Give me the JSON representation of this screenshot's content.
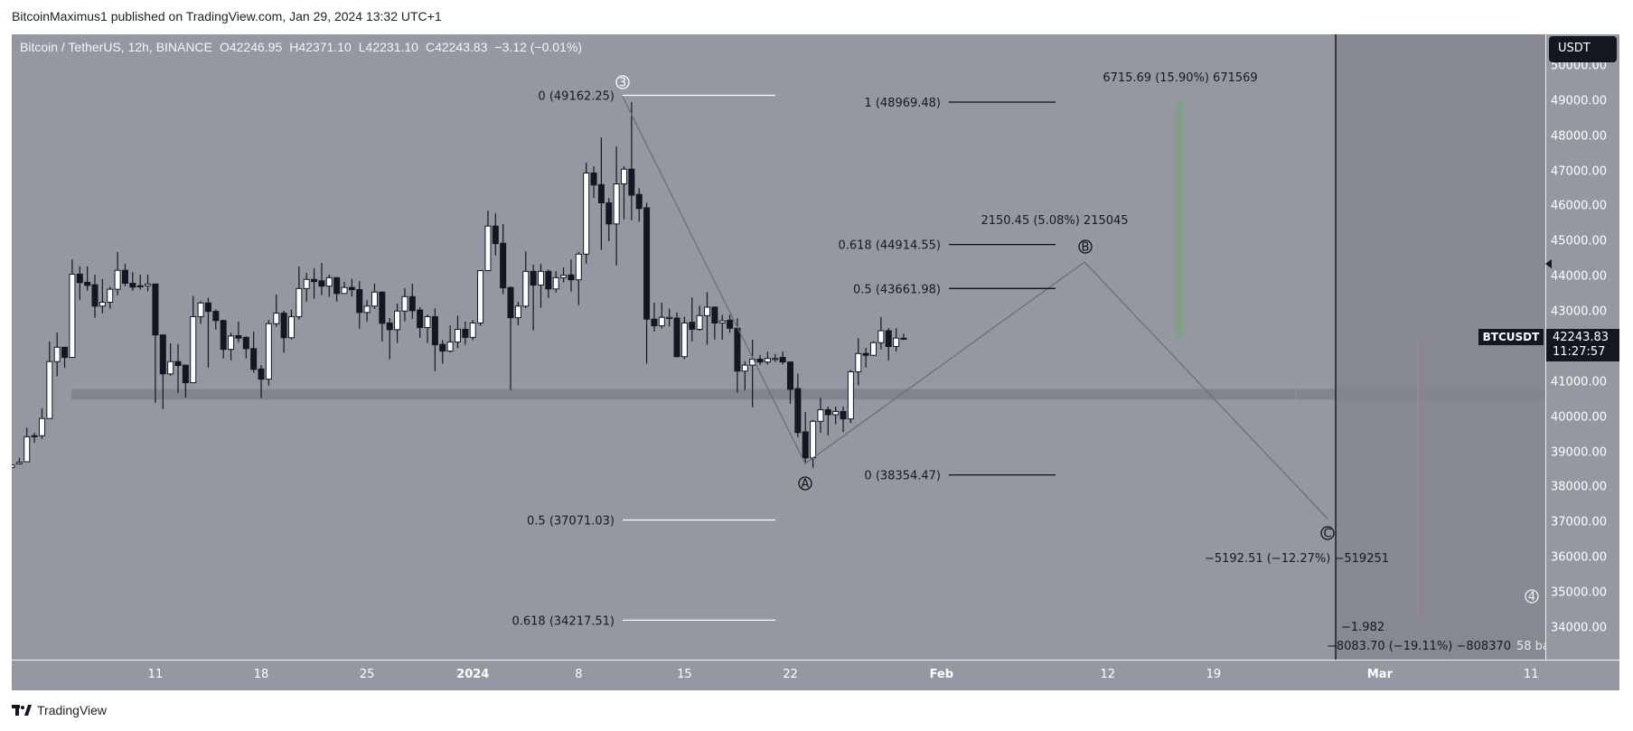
{
  "header": {
    "published": "BitcoinMaximus1 published on TradingView.com, Jan 29, 2024 13:32 UTC+1"
  },
  "legend": {
    "symbol": "Bitcoin / TetherUS, 12h, BINANCE",
    "open": "O42246.95",
    "high": "H42371.10",
    "low": "L42231.10",
    "close": "C42243.83",
    "change": "−3.12 (−0.01%)"
  },
  "price_axis": {
    "currency_button": "USDT",
    "labels": [
      "50000.00",
      "49000.00",
      "48000.00",
      "47000.00",
      "46000.00",
      "45000.00",
      "44000.00",
      "43000.00",
      "41000.00",
      "40000.00",
      "39000.00",
      "38000.00",
      "37000.00",
      "36000.00",
      "35000.00",
      "34000.00"
    ],
    "symbol_tag": "BTCUSDT",
    "last_price": "42243.83",
    "countdown": "11:27:57"
  },
  "time_axis": {
    "labels": [
      {
        "t": "11",
        "d": -21,
        "b": false
      },
      {
        "t": "18",
        "d": -14,
        "b": false
      },
      {
        "t": "25",
        "d": -7,
        "b": false
      },
      {
        "t": "2024",
        "d": 0,
        "b": true
      },
      {
        "t": "8",
        "d": 7,
        "b": false
      },
      {
        "t": "15",
        "d": 14,
        "b": false
      },
      {
        "t": "22",
        "d": 21,
        "b": false
      },
      {
        "t": "Feb",
        "d": 31,
        "b": true
      },
      {
        "t": "12",
        "d": 42,
        "b": false
      },
      {
        "t": "19",
        "d": 49,
        "b": false
      },
      {
        "t": "Mar",
        "d": 60,
        "b": true
      },
      {
        "t": "11",
        "d": 70,
        "b": false
      }
    ]
  },
  "fib_left": [
    {
      "label": "0 (49162.25)",
      "price": 49162.25
    },
    {
      "label": "0.5 (37071.03)",
      "price": 37071.03
    },
    {
      "label": "0.618 (34217.51)",
      "price": 34217.51
    }
  ],
  "fib_right": [
    {
      "label": "1 (48969.48)",
      "price": 48969.48
    },
    {
      "label": "0.618 (44914.55)",
      "price": 44914.55
    },
    {
      "label": "0.5 (43661.98)",
      "price": 43661.98
    },
    {
      "label": "0 (38354.47)",
      "price": 38354.47
    }
  ],
  "waves": {
    "w3": "3",
    "a": "A",
    "b": "B",
    "c": "C",
    "w4": "4"
  },
  "measures": {
    "up_big": "6715.69 (15.90%) 671569",
    "up_small": "2150.45 (5.08%) 215045",
    "down_c": "−5192.51 (−12.27%) −519251",
    "down_big": "−8083.70 (−19.11%) −808370",
    "bars": "58 ba",
    "ratio": "−1.982"
  },
  "support_zone": {
    "low": 40500,
    "high": 40800
  },
  "colors": {
    "pane": "#9598a1",
    "bull": "#ffffff",
    "bear": "#131722",
    "green": "#7fa287",
    "projection": "#868892"
  },
  "footer": {
    "brand": "TradingView"
  },
  "chart_data": {
    "type": "candlestick",
    "interval": "12h",
    "first_candle": "2023-12-01 00:00",
    "ohlc": [
      [
        38570,
        38650,
        38540,
        38640
      ],
      [
        38670,
        38840,
        38660,
        38710
      ],
      [
        38730,
        39700,
        38720,
        39440
      ],
      [
        39470,
        39550,
        39270,
        39440
      ],
      [
        39470,
        40250,
        39380,
        39960
      ],
      [
        39960,
        42150,
        39960,
        41580
      ],
      [
        41580,
        42410,
        41160,
        41990
      ],
      [
        41990,
        41990,
        41410,
        41700
      ],
      [
        41700,
        44490,
        41700,
        44070
      ],
      [
        44070,
        44290,
        43340,
        43830
      ],
      [
        43840,
        44290,
        43600,
        43750
      ],
      [
        43770,
        44060,
        42830,
        43160
      ],
      [
        43160,
        43930,
        42960,
        43270
      ],
      [
        43270,
        43710,
        43090,
        43640
      ],
      [
        43640,
        44700,
        43470,
        44180
      ],
      [
        44180,
        44360,
        43730,
        43810
      ],
      [
        43810,
        44130,
        43600,
        43700
      ],
      [
        43740,
        44060,
        43630,
        43730
      ],
      [
        43740,
        44060,
        43580,
        43790
      ],
      [
        43790,
        43790,
        40410,
        42340
      ],
      [
        42340,
        42340,
        40230,
        41230
      ],
      [
        41230,
        42100,
        41180,
        41580
      ],
      [
        41580,
        42080,
        40690,
        41470
      ],
      [
        41480,
        41480,
        40560,
        40980
      ],
      [
        40980,
        43450,
        40980,
        42860
      ],
      [
        42860,
        43300,
        42650,
        43250
      ],
      [
        43250,
        43400,
        41410,
        43010
      ],
      [
        43010,
        43070,
        42490,
        42750
      ],
      [
        42750,
        42770,
        41670,
        41930
      ],
      [
        41930,
        42400,
        41620,
        42310
      ],
      [
        42320,
        42720,
        42130,
        42250
      ],
      [
        42270,
        42300,
        41670,
        41950
      ],
      [
        41950,
        42430,
        41260,
        41360
      ],
      [
        41370,
        41480,
        40540,
        41080
      ],
      [
        41080,
        42760,
        40900,
        42660
      ],
      [
        42660,
        43490,
        42570,
        42960
      ],
      [
        42960,
        43030,
        41830,
        42260
      ],
      [
        42260,
        43060,
        42210,
        42860
      ],
      [
        42860,
        44290,
        42780,
        43660
      ],
      [
        43660,
        44110,
        43290,
        43920
      ],
      [
        43920,
        44240,
        43370,
        43860
      ],
      [
        43880,
        44390,
        43470,
        43730
      ],
      [
        43730,
        44060,
        43420,
        43970
      ],
      [
        43970,
        43970,
        43290,
        43520
      ],
      [
        43520,
        43850,
        43520,
        43690
      ],
      [
        43690,
        43940,
        43430,
        43630
      ],
      [
        43630,
        43870,
        42520,
        42980
      ],
      [
        42980,
        43330,
        42720,
        43160
      ],
      [
        43160,
        43800,
        43080,
        43560
      ],
      [
        43560,
        43580,
        42150,
        42670
      ],
      [
        42680,
        42820,
        41650,
        42490
      ],
      [
        42490,
        43230,
        42110,
        43020
      ],
      [
        43020,
        43670,
        42730,
        43430
      ],
      [
        43430,
        43800,
        42800,
        43030
      ],
      [
        43050,
        43130,
        42260,
        42550
      ],
      [
        42550,
        42920,
        42110,
        42860
      ],
      [
        42860,
        43100,
        41310,
        42060
      ],
      [
        42070,
        42190,
        41520,
        41880
      ],
      [
        41880,
        42610,
        41840,
        42140
      ],
      [
        42140,
        42890,
        41970,
        42500
      ],
      [
        42500,
        42720,
        42060,
        42270
      ],
      [
        42270,
        42760,
        42190,
        42680
      ],
      [
        42680,
        44170,
        42600,
        44170
      ],
      [
        44170,
        45880,
        44170,
        45440
      ],
      [
        45440,
        45800,
        44600,
        44940
      ],
      [
        44950,
        45500,
        43500,
        43680
      ],
      [
        43690,
        43720,
        40770,
        42830
      ],
      [
        42830,
        43280,
        42620,
        43160
      ],
      [
        43160,
        44720,
        43100,
        44150
      ],
      [
        44150,
        44340,
        42470,
        43760
      ],
      [
        43760,
        44360,
        43110,
        44150
      ],
      [
        44150,
        44200,
        43390,
        43650
      ],
      [
        43650,
        44160,
        43550,
        43970
      ],
      [
        43970,
        44260,
        43840,
        44040
      ],
      [
        44050,
        44490,
        43570,
        43910
      ],
      [
        43910,
        44700,
        43190,
        44640
      ],
      [
        44640,
        47240,
        44370,
        46950
      ],
      [
        46950,
        47140,
        46240,
        46610
      ],
      [
        46620,
        47960,
        44760,
        46100
      ],
      [
        46100,
        46240,
        45010,
        45500
      ],
      [
        45500,
        47710,
        44320,
        46640
      ],
      [
        46640,
        47140,
        45630,
        47060
      ],
      [
        47060,
        48970,
        45610,
        46320
      ],
      [
        46340,
        46520,
        45560,
        45940
      ],
      [
        45960,
        46100,
        41520,
        42790
      ],
      [
        42790,
        43260,
        42440,
        42600
      ],
      [
        42600,
        43260,
        42520,
        42840
      ],
      [
        42840,
        43090,
        42580,
        42840
      ],
      [
        42820,
        42980,
        41720,
        41720
      ],
      [
        41720,
        42860,
        41650,
        42680
      ],
      [
        42700,
        43410,
        42160,
        42500
      ],
      [
        42500,
        43170,
        42460,
        42890
      ],
      [
        42890,
        43560,
        42060,
        43130
      ],
      [
        43130,
        43150,
        42210,
        42680
      ],
      [
        42680,
        42910,
        42200,
        42740
      ],
      [
        42760,
        42910,
        42400,
        42530
      ],
      [
        42530,
        42810,
        40700,
        41310
      ],
      [
        41310,
        41590,
        40770,
        41480
      ],
      [
        41480,
        42200,
        40280,
        41650
      ],
      [
        41650,
        41770,
        41480,
        41570
      ],
      [
        41570,
        41860,
        41500,
        41670
      ],
      [
        41670,
        41800,
        41570,
        41670
      ],
      [
        41700,
        41870,
        41500,
        41570
      ],
      [
        41570,
        41590,
        40380,
        40790
      ],
      [
        40810,
        41240,
        39420,
        39560
      ],
      [
        39580,
        40140,
        38670,
        38840
      ],
      [
        38840,
        39920,
        38560,
        39880
      ],
      [
        39880,
        40550,
        39550,
        40210
      ],
      [
        40210,
        40300,
        39480,
        40070
      ],
      [
        40070,
        40300,
        39800,
        40160
      ],
      [
        40160,
        40300,
        39570,
        39950
      ],
      [
        39950,
        41340,
        39830,
        41290
      ],
      [
        41290,
        42250,
        40910,
        41810
      ],
      [
        41810,
        41970,
        41410,
        41760
      ],
      [
        41760,
        42160,
        41740,
        42120
      ],
      [
        42120,
        42850,
        41930,
        42460
      ],
      [
        42460,
        42530,
        41610,
        42010
      ],
      [
        42010,
        42530,
        41870,
        42250
      ],
      [
        42246.95,
        42371.1,
        42231.1,
        42243.83
      ]
    ]
  }
}
